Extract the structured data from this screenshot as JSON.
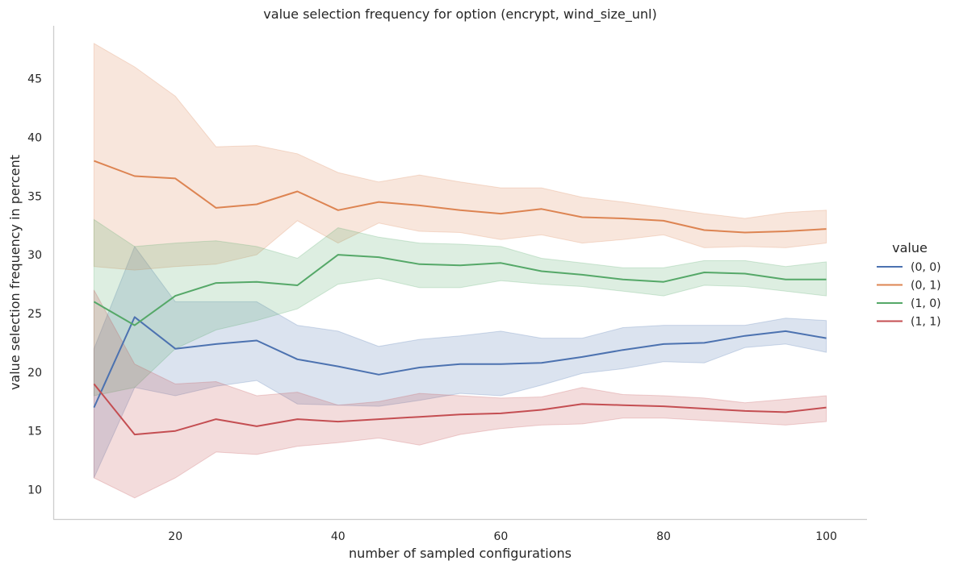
{
  "chart_data": {
    "type": "line",
    "title": "value selection frequency for option (encrypt, wind_size_unl)",
    "xlabel": "number of sampled configurations",
    "ylabel": "value selection frequency in percent",
    "xlim": [
      5,
      105
    ],
    "ylim": [
      7.5,
      49.5
    ],
    "xticks": [
      20,
      40,
      60,
      80,
      100
    ],
    "yticks": [
      10,
      15,
      20,
      25,
      30,
      35,
      40,
      45
    ],
    "grid": false,
    "legend": {
      "title": "value",
      "placement": "right"
    },
    "x": [
      10,
      15,
      20,
      25,
      30,
      35,
      40,
      45,
      50,
      55,
      60,
      65,
      70,
      75,
      80,
      85,
      90,
      95,
      100
    ],
    "series": [
      {
        "name": "(0, 0)",
        "color": "#4c72b0",
        "values": [
          17.0,
          24.7,
          22.0,
          22.4,
          22.7,
          21.1,
          20.5,
          19.8,
          20.4,
          20.7,
          20.7,
          20.8,
          21.3,
          21.9,
          22.4,
          22.5,
          23.1,
          23.5,
          22.9
        ],
        "lower": [
          11.0,
          18.7,
          18.0,
          18.8,
          19.3,
          17.3,
          17.2,
          17.1,
          17.6,
          18.2,
          18.0,
          18.9,
          19.9,
          20.3,
          20.9,
          20.8,
          22.1,
          22.4,
          21.7
        ],
        "upper": [
          22.0,
          30.7,
          26.0,
          26.0,
          26.0,
          24.0,
          23.5,
          22.2,
          22.8,
          23.1,
          23.5,
          22.9,
          22.9,
          23.8,
          24.0,
          24.0,
          24.0,
          24.6,
          24.4
        ]
      },
      {
        "name": "(0, 1)",
        "color": "#dd8452",
        "values": [
          38.0,
          36.7,
          36.5,
          34.0,
          34.3,
          35.4,
          33.8,
          34.5,
          34.2,
          33.8,
          33.5,
          33.9,
          33.2,
          33.1,
          32.9,
          32.1,
          31.9,
          32.0,
          32.2
        ],
        "lower": [
          29.0,
          28.7,
          29.0,
          29.2,
          30.0,
          32.9,
          31.0,
          32.7,
          32.0,
          31.9,
          31.3,
          31.7,
          31.0,
          31.3,
          31.7,
          30.6,
          30.7,
          30.6,
          31.0
        ],
        "upper": [
          48.0,
          46.0,
          43.5,
          39.2,
          39.3,
          38.6,
          37.0,
          36.2,
          36.8,
          36.2,
          35.7,
          35.7,
          34.9,
          34.5,
          34.0,
          33.5,
          33.1,
          33.6,
          33.8
        ]
      },
      {
        "name": "(1, 0)",
        "color": "#55a868",
        "values": [
          26.0,
          24.0,
          26.5,
          27.6,
          27.7,
          27.4,
          30.0,
          29.8,
          29.2,
          29.1,
          29.3,
          28.6,
          28.3,
          27.9,
          27.7,
          28.5,
          28.4,
          27.9,
          27.9
        ],
        "lower": [
          18.0,
          18.7,
          22.0,
          23.6,
          24.4,
          25.4,
          27.5,
          28.0,
          27.2,
          27.2,
          27.8,
          27.5,
          27.3,
          26.9,
          26.5,
          27.4,
          27.3,
          26.9,
          26.5
        ],
        "upper": [
          33.0,
          30.7,
          31.0,
          31.2,
          30.7,
          29.7,
          32.3,
          31.5,
          31.0,
          30.9,
          30.7,
          29.7,
          29.3,
          28.9,
          28.9,
          29.5,
          29.5,
          29.0,
          29.4
        ]
      },
      {
        "name": "(1, 1)",
        "color": "#c44e52",
        "values": [
          19.0,
          14.7,
          15.0,
          16.0,
          15.4,
          16.0,
          15.8,
          16.0,
          16.2,
          16.4,
          16.5,
          16.8,
          17.3,
          17.2,
          17.1,
          16.9,
          16.7,
          16.6,
          17.0
        ],
        "lower": [
          11.0,
          9.3,
          11.0,
          13.2,
          13.0,
          13.7,
          14.0,
          14.4,
          13.8,
          14.7,
          15.2,
          15.5,
          15.6,
          16.1,
          16.1,
          15.9,
          15.7,
          15.5,
          15.8
        ],
        "upper": [
          27.0,
          20.7,
          19.0,
          19.2,
          18.0,
          18.3,
          17.2,
          17.5,
          18.2,
          18.0,
          17.8,
          17.9,
          18.7,
          18.1,
          18.0,
          17.8,
          17.4,
          17.7,
          18.0
        ]
      }
    ]
  }
}
